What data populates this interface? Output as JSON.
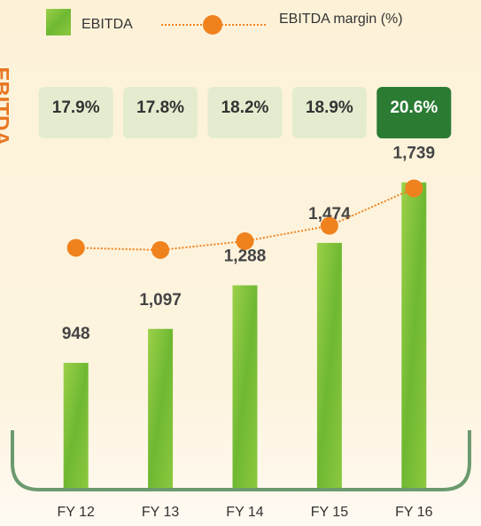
{
  "chart_data": {
    "type": "combo",
    "y_label": "EBITDA",
    "categories": [
      "FY 12",
      "FY 13",
      "FY 14",
      "FY 15",
      "FY 16"
    ],
    "series": [
      {
        "name": "EBITDA",
        "type": "bar",
        "color": "#7cc242",
        "values": [
          948,
          1097,
          1288,
          1474,
          1739
        ],
        "value_labels": [
          "948",
          "1,097",
          "1,288",
          "1,474",
          "1,739"
        ]
      },
      {
        "name": "EBITDA margin (%)",
        "type": "line",
        "color": "#f0821e",
        "axis": "y2",
        "values": [
          17.9,
          17.8,
          18.2,
          18.9,
          20.6
        ],
        "value_labels": [
          "17.9%",
          "17.8%",
          "18.2%",
          "18.9%",
          "20.6%"
        ]
      }
    ],
    "label_box_colors": [
      "#e4eccf",
      "#e4eccf",
      "#e4eccf",
      "#e4eccf",
      "#2b7b33"
    ],
    "ylim": [
      400,
      1800
    ],
    "y2lim": [
      7,
      21.5
    ]
  }
}
